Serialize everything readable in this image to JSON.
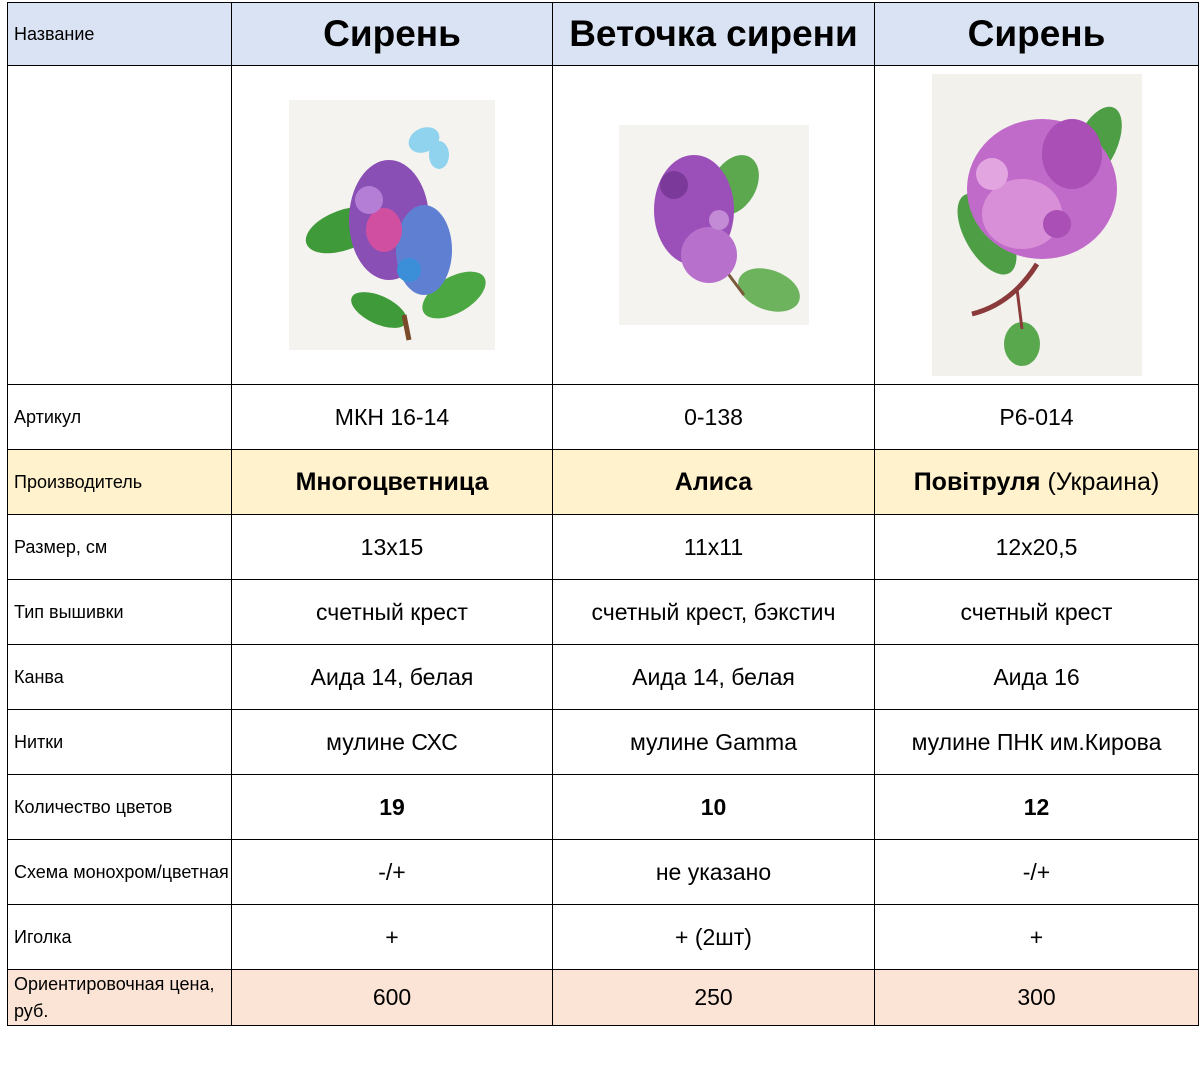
{
  "row_labels": {
    "name": "Название",
    "article": "Артикул",
    "maker": "Производитель",
    "size": "Размер, см",
    "type": "Тип вышивки",
    "canvas": "Канва",
    "threads": "Нитки",
    "colors": "Количество цветов",
    "scheme": "Схема монохром/цветная",
    "needle": "Иголка",
    "price": "Ориентировочная цена, руб."
  },
  "products": [
    {
      "name": "Сирень",
      "article": "МКН 16-14",
      "maker": "Многоцветница",
      "maker_note": "",
      "size": "13х15",
      "type": "счетный крест",
      "canvas": "Аида 14, белая",
      "threads": "мулине СХС",
      "colors": "19",
      "scheme": "-/+",
      "needle": "+",
      "price": "600"
    },
    {
      "name": "Веточка сирени",
      "article": "0-138",
      "maker": "Алиса",
      "maker_note": "",
      "size": "11х11",
      "type": "счетный крест, бэкстич",
      "canvas": "Аида 14, белая",
      "threads": "мулине Gamma",
      "colors": "10",
      "scheme": "не указано",
      "needle": "+ (2шт)",
      "price": "250"
    },
    {
      "name": "Сирень",
      "article": "Р6-014",
      "maker": "Повітруля",
      "maker_note": " (Украина)",
      "size": "12х20,5",
      "type": "счетный крест",
      "canvas": "Аида 16",
      "threads": "мулине ПНК им.Кирова",
      "colors": "12",
      "scheme": "-/+",
      "needle": "+",
      "price": "300"
    }
  ],
  "colors": {
    "header_bg": "#dae3f3",
    "maker_bg": "#fff2cc",
    "price_bg": "#fbe4d5",
    "lilac": "#9b4fb8",
    "leaf": "#3f9a3a"
  }
}
